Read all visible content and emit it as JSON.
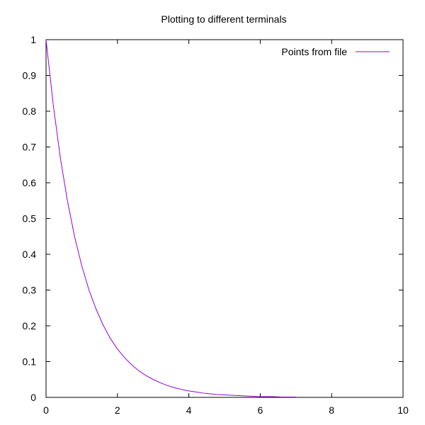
{
  "chart_data": {
    "type": "line",
    "title": "Plotting to different terminals",
    "xlabel": "",
    "ylabel": "",
    "xlim": [
      0,
      10
    ],
    "ylim": [
      0,
      1
    ],
    "x_ticks": [
      "0",
      "2",
      "4",
      "6",
      "8",
      "10"
    ],
    "y_ticks": [
      "0",
      "0.1",
      "0.2",
      "0.3",
      "0.4",
      "0.5",
      "0.6",
      "0.7",
      "0.8",
      "0.9",
      "1"
    ],
    "grid": false,
    "legend_position": "top-right",
    "series": [
      {
        "name": "Points from file",
        "color": "#9400d3",
        "x": [
          0,
          0.2,
          0.4,
          0.6,
          0.8,
          1.0,
          1.2,
          1.4,
          1.6,
          1.8,
          2.0,
          2.2,
          2.4,
          2.6,
          2.8,
          3.0,
          3.2,
          3.4,
          3.6,
          3.8,
          4.0,
          4.2,
          4.4,
          4.6,
          4.8,
          5.0,
          5.2,
          5.4,
          5.6,
          5.8,
          6.0,
          6.2,
          6.4,
          6.6,
          6.8,
          7.0
        ],
        "y": [
          1.0,
          0.819,
          0.67,
          0.549,
          0.449,
          0.368,
          0.301,
          0.247,
          0.202,
          0.165,
          0.135,
          0.111,
          0.091,
          0.074,
          0.061,
          0.05,
          0.041,
          0.033,
          0.027,
          0.022,
          0.018,
          0.015,
          0.012,
          0.01,
          0.008,
          0.007,
          0.006,
          0.005,
          0.004,
          0.003,
          0.002,
          0.002,
          0.002,
          0.001,
          0.001,
          0.001
        ]
      }
    ]
  }
}
